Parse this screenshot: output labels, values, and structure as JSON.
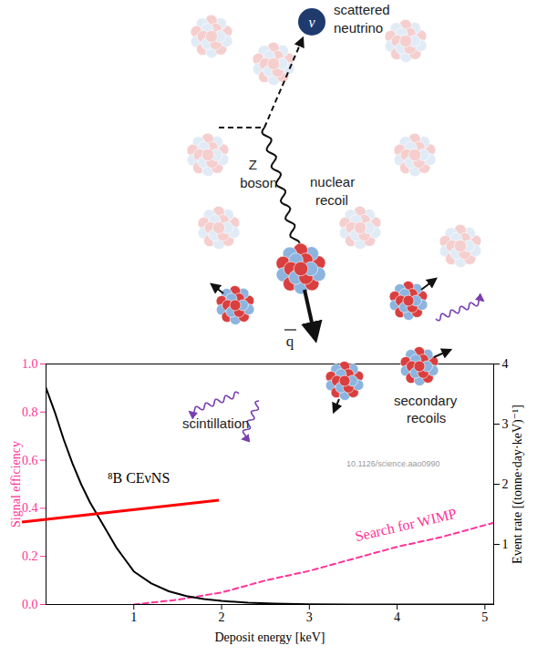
{
  "chart_data": {
    "type": "line",
    "xlabel": "Deposit energy [keV]",
    "ylabel": "Signal efficiency",
    "y2label": "Event rate [(tonne·day·keV)⁻¹]",
    "xlim": [
      0,
      5.1
    ],
    "xticks": [
      1,
      2,
      3,
      4,
      5
    ],
    "ylim": [
      0,
      1
    ],
    "yticks": [
      {
        "value": 0,
        "label": "0.0"
      },
      {
        "value": 0.2,
        "label": "0.2"
      },
      {
        "value": 0.4,
        "label": "0.4"
      },
      {
        "value": 0.6,
        "label": "0.6"
      },
      {
        "value": 0.8,
        "label": "0.8"
      },
      {
        "value": 1,
        "label": "1.0"
      }
    ],
    "y2lim": [
      0,
      4
    ],
    "y2ticks": [
      1,
      2,
      3,
      4
    ],
    "series": [
      {
        "name": "⁸B CEνNS",
        "color": "#000000",
        "axis": "y2",
        "line_style": "solid",
        "x": [
          0,
          0.1,
          0.2,
          0.3,
          0.4,
          0.5,
          0.6,
          0.7,
          0.8,
          0.9,
          1.0,
          1.2,
          1.4,
          1.6,
          1.8,
          2.0,
          2.3,
          2.6,
          3.0,
          3.5,
          5.1
        ],
        "values": [
          3.6,
          3.2,
          2.75,
          2.35,
          2.0,
          1.7,
          1.45,
          1.2,
          0.95,
          0.75,
          0.55,
          0.35,
          0.22,
          0.14,
          0.09,
          0.06,
          0.03,
          0.015,
          0.005,
          0,
          0
        ]
      },
      {
        "name": "Search for WIMP",
        "color": "#ff3399",
        "axis": "y",
        "line_style": "dashed",
        "x": [
          1.0,
          1.5,
          2.0,
          2.5,
          3.0,
          3.5,
          4.0,
          4.5,
          5.0,
          5.1
        ],
        "values": [
          0,
          0.02,
          0.05,
          0.1,
          0.14,
          0.19,
          0.24,
          0.28,
          0.33,
          0.34
        ]
      }
    ]
  },
  "illustration": {
    "neutrino": "ν",
    "scattered": "scattered",
    "neutrino_label": "neutrino",
    "z": "Z",
    "boson": "boson",
    "nuclear": "nuclear",
    "recoil": "recoil",
    "q": "q",
    "secondary": "secondary",
    "recoils": "recoils",
    "scintillation": "scintillation",
    "doi": "10.1126/science.aao0990"
  }
}
